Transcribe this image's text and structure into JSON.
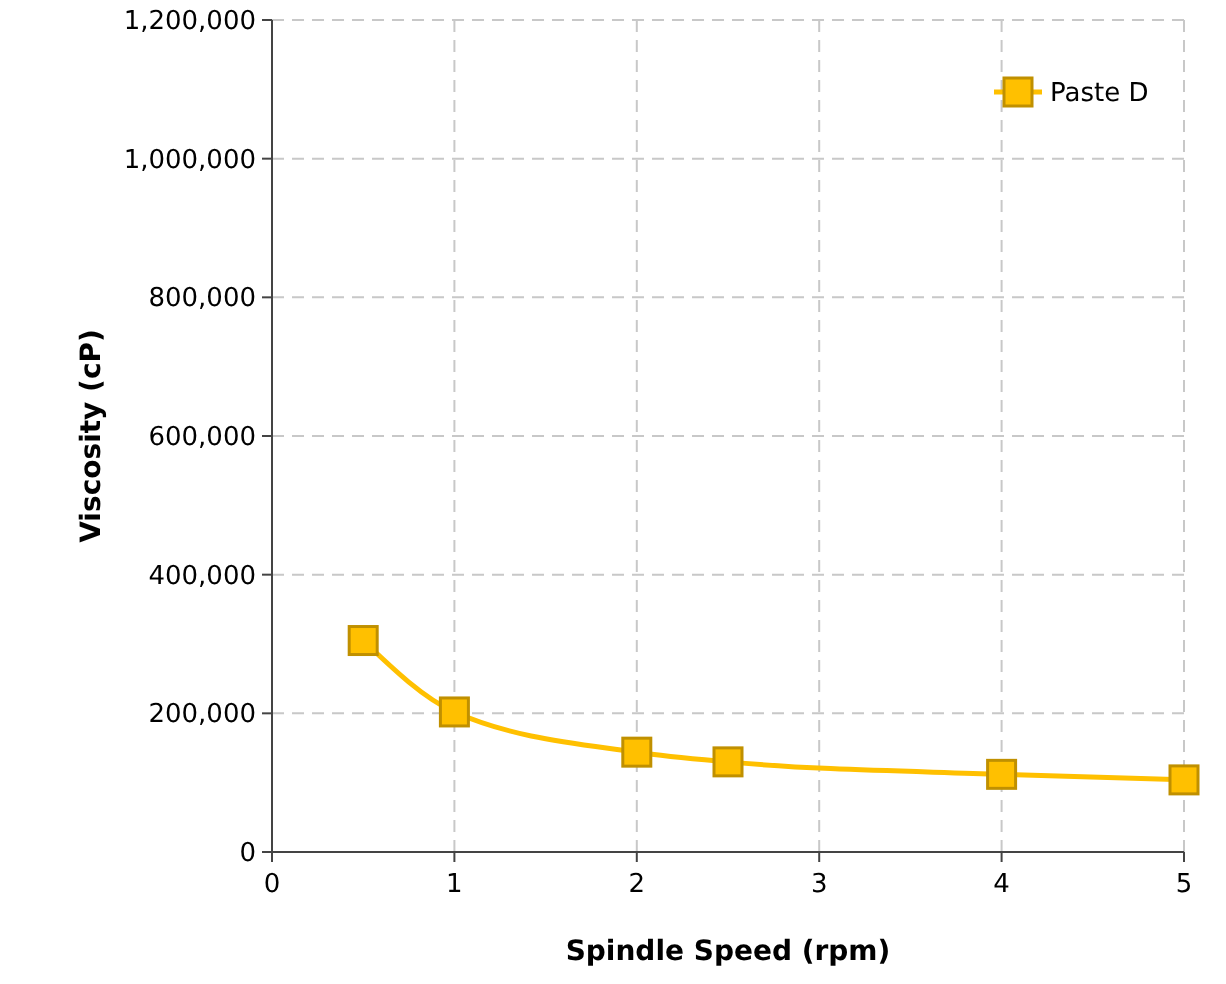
{
  "chart_data": {
    "type": "line",
    "xlabel": "Spindle Speed (rpm)",
    "ylabel": "Viscosity (cP)",
    "x": [
      0.5,
      1,
      2,
      2.5,
      4,
      5
    ],
    "series": [
      {
        "name": "Paste D",
        "color": "#ffc000",
        "values": [
          305000,
          202000,
          144000,
          130000,
          112000,
          104000
        ]
      }
    ],
    "xlim": [
      0,
      5
    ],
    "xticks": [
      0,
      1,
      2,
      3,
      4,
      5
    ],
    "ylim": [
      0,
      1200000
    ],
    "yticks": [
      {
        "value": 0,
        "label": "0"
      },
      {
        "value": 200000,
        "label": "200,000"
      },
      {
        "value": 400000,
        "label": "400,000"
      },
      {
        "value": 600000,
        "label": "600,000"
      },
      {
        "value": 800000,
        "label": "800,000"
      },
      {
        "value": 1000000,
        "label": "1,000,000"
      },
      {
        "value": 1200000,
        "label": "1,200,000"
      }
    ],
    "grid": true,
    "legend": "top right",
    "marker": "square",
    "line_style": "solid"
  }
}
